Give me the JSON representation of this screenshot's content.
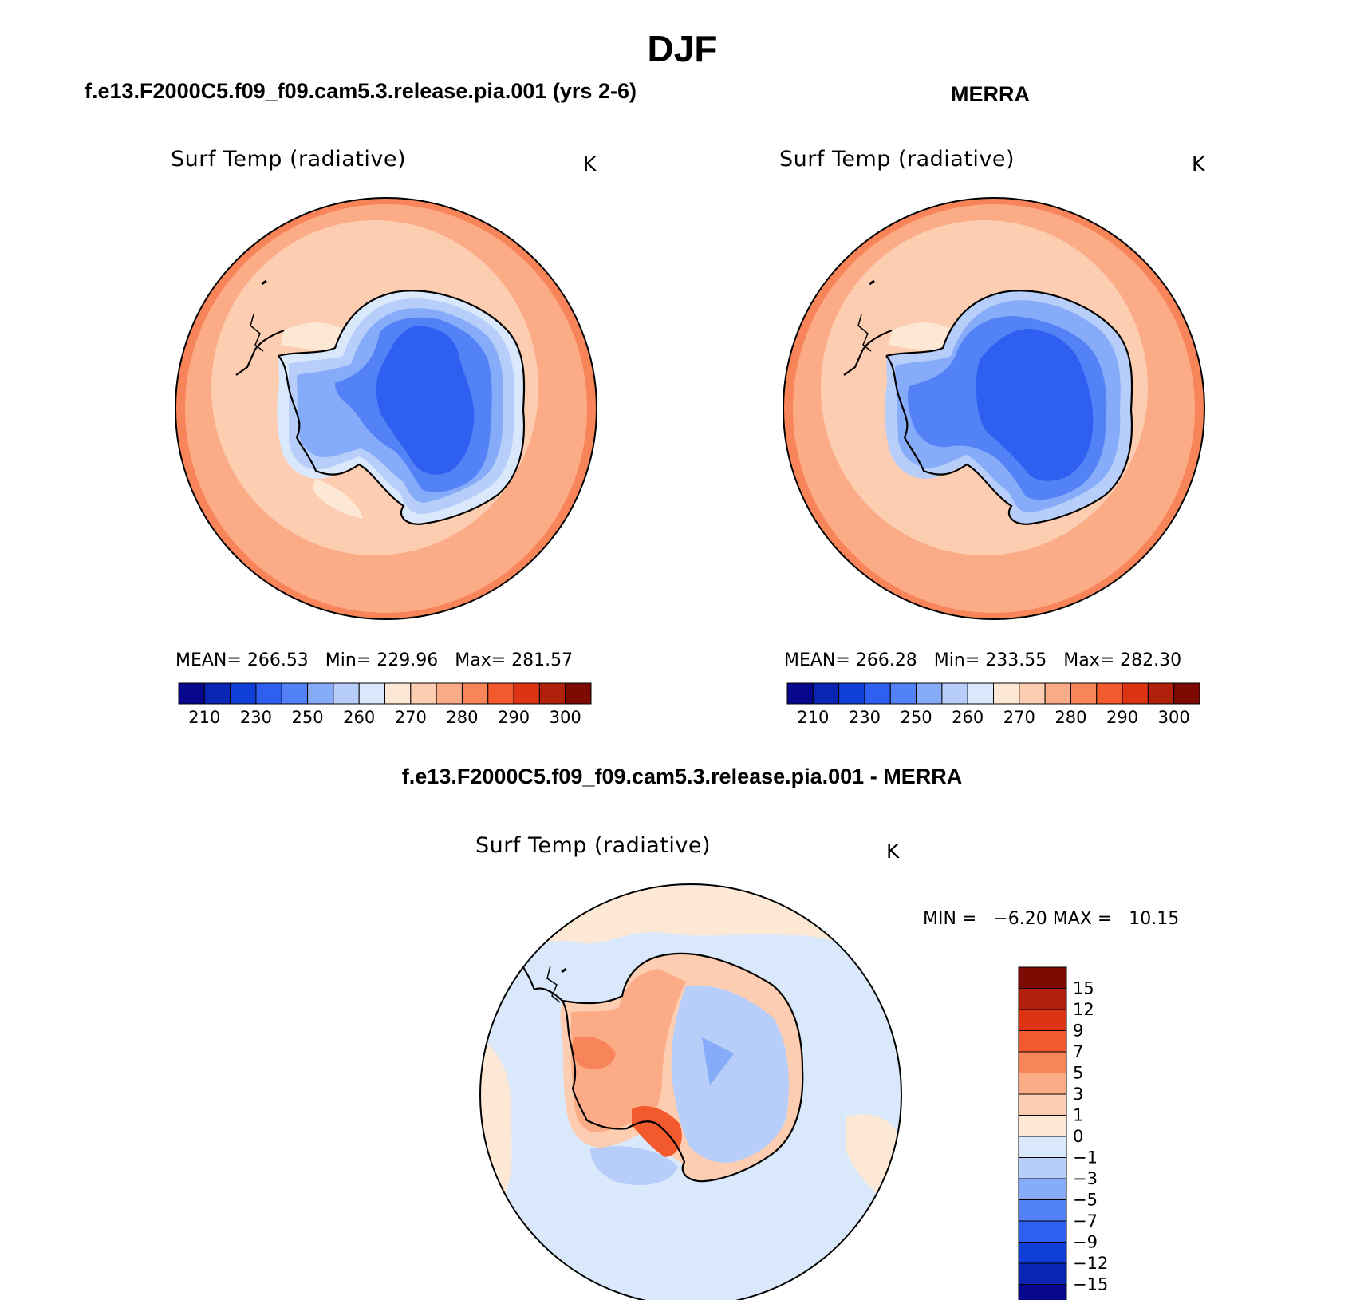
{
  "figure": {
    "title": "DJF",
    "panels": [
      {
        "id": "model",
        "title": "f.e13.F2000C5.f09_f09.cam5.3.release.pia.001 (yrs 2-6)",
        "variable": "Surf Temp (radiative)",
        "units": "K",
        "stats": {
          "mean_label": "MEAN=",
          "mean": "266.53",
          "min_label": "Min=",
          "min": "229.96",
          "max_label": "Max=",
          "max": "281.57"
        },
        "colorbar_ticks": [
          "210",
          "230",
          "250",
          "260",
          "270",
          "280",
          "290",
          "300"
        ]
      },
      {
        "id": "obs",
        "title": "MERRA",
        "variable": "Surf Temp (radiative)",
        "units": "K",
        "stats": {
          "mean_label": "MEAN=",
          "mean": "266.28",
          "min_label": "Min=",
          "min": "233.55",
          "max_label": "Max=",
          "max": "282.30"
        },
        "colorbar_ticks": [
          "210",
          "230",
          "250",
          "260",
          "270",
          "280",
          "290",
          "300"
        ]
      },
      {
        "id": "diff",
        "title": "f.e13.F2000C5.f09_f09.cam5.3.release.pia.001 - MERRA",
        "variable": "Surf Temp (radiative)",
        "units": "K",
        "stats": {
          "min_label": "MIN =",
          "min": "−6.20",
          "max_label": "MAX =",
          "max": "10.15"
        },
        "colorbar_ticks": [
          "15",
          "12",
          "9",
          "7",
          "5",
          "3",
          "1",
          "0",
          "−1",
          "−3",
          "−5",
          "−7",
          "−9",
          "−12",
          "−15"
        ]
      }
    ],
    "palettes": {
      "abs": [
        "#08088c",
        "#0a24b4",
        "#0f3fd8",
        "#2e5ff0",
        "#5282f5",
        "#86abf8",
        "#b8cefa",
        "#d9e8fa",
        "#fde8d6",
        "#fdcdb2",
        "#fbab86",
        "#f8845a",
        "#f25a2e",
        "#dc3412",
        "#b0200a",
        "#7e0a04"
      ],
      "diff": [
        "#08088c",
        "#0a24b4",
        "#0f3fd8",
        "#2e5ff0",
        "#5282f5",
        "#86abf8",
        "#b8cefa",
        "#d9e8fa",
        "#fde8d6",
        "#fdcdb2",
        "#fbab86",
        "#f8845a",
        "#f25a2e",
        "#dc3412",
        "#b0200a",
        "#7e0a04"
      ]
    }
  }
}
